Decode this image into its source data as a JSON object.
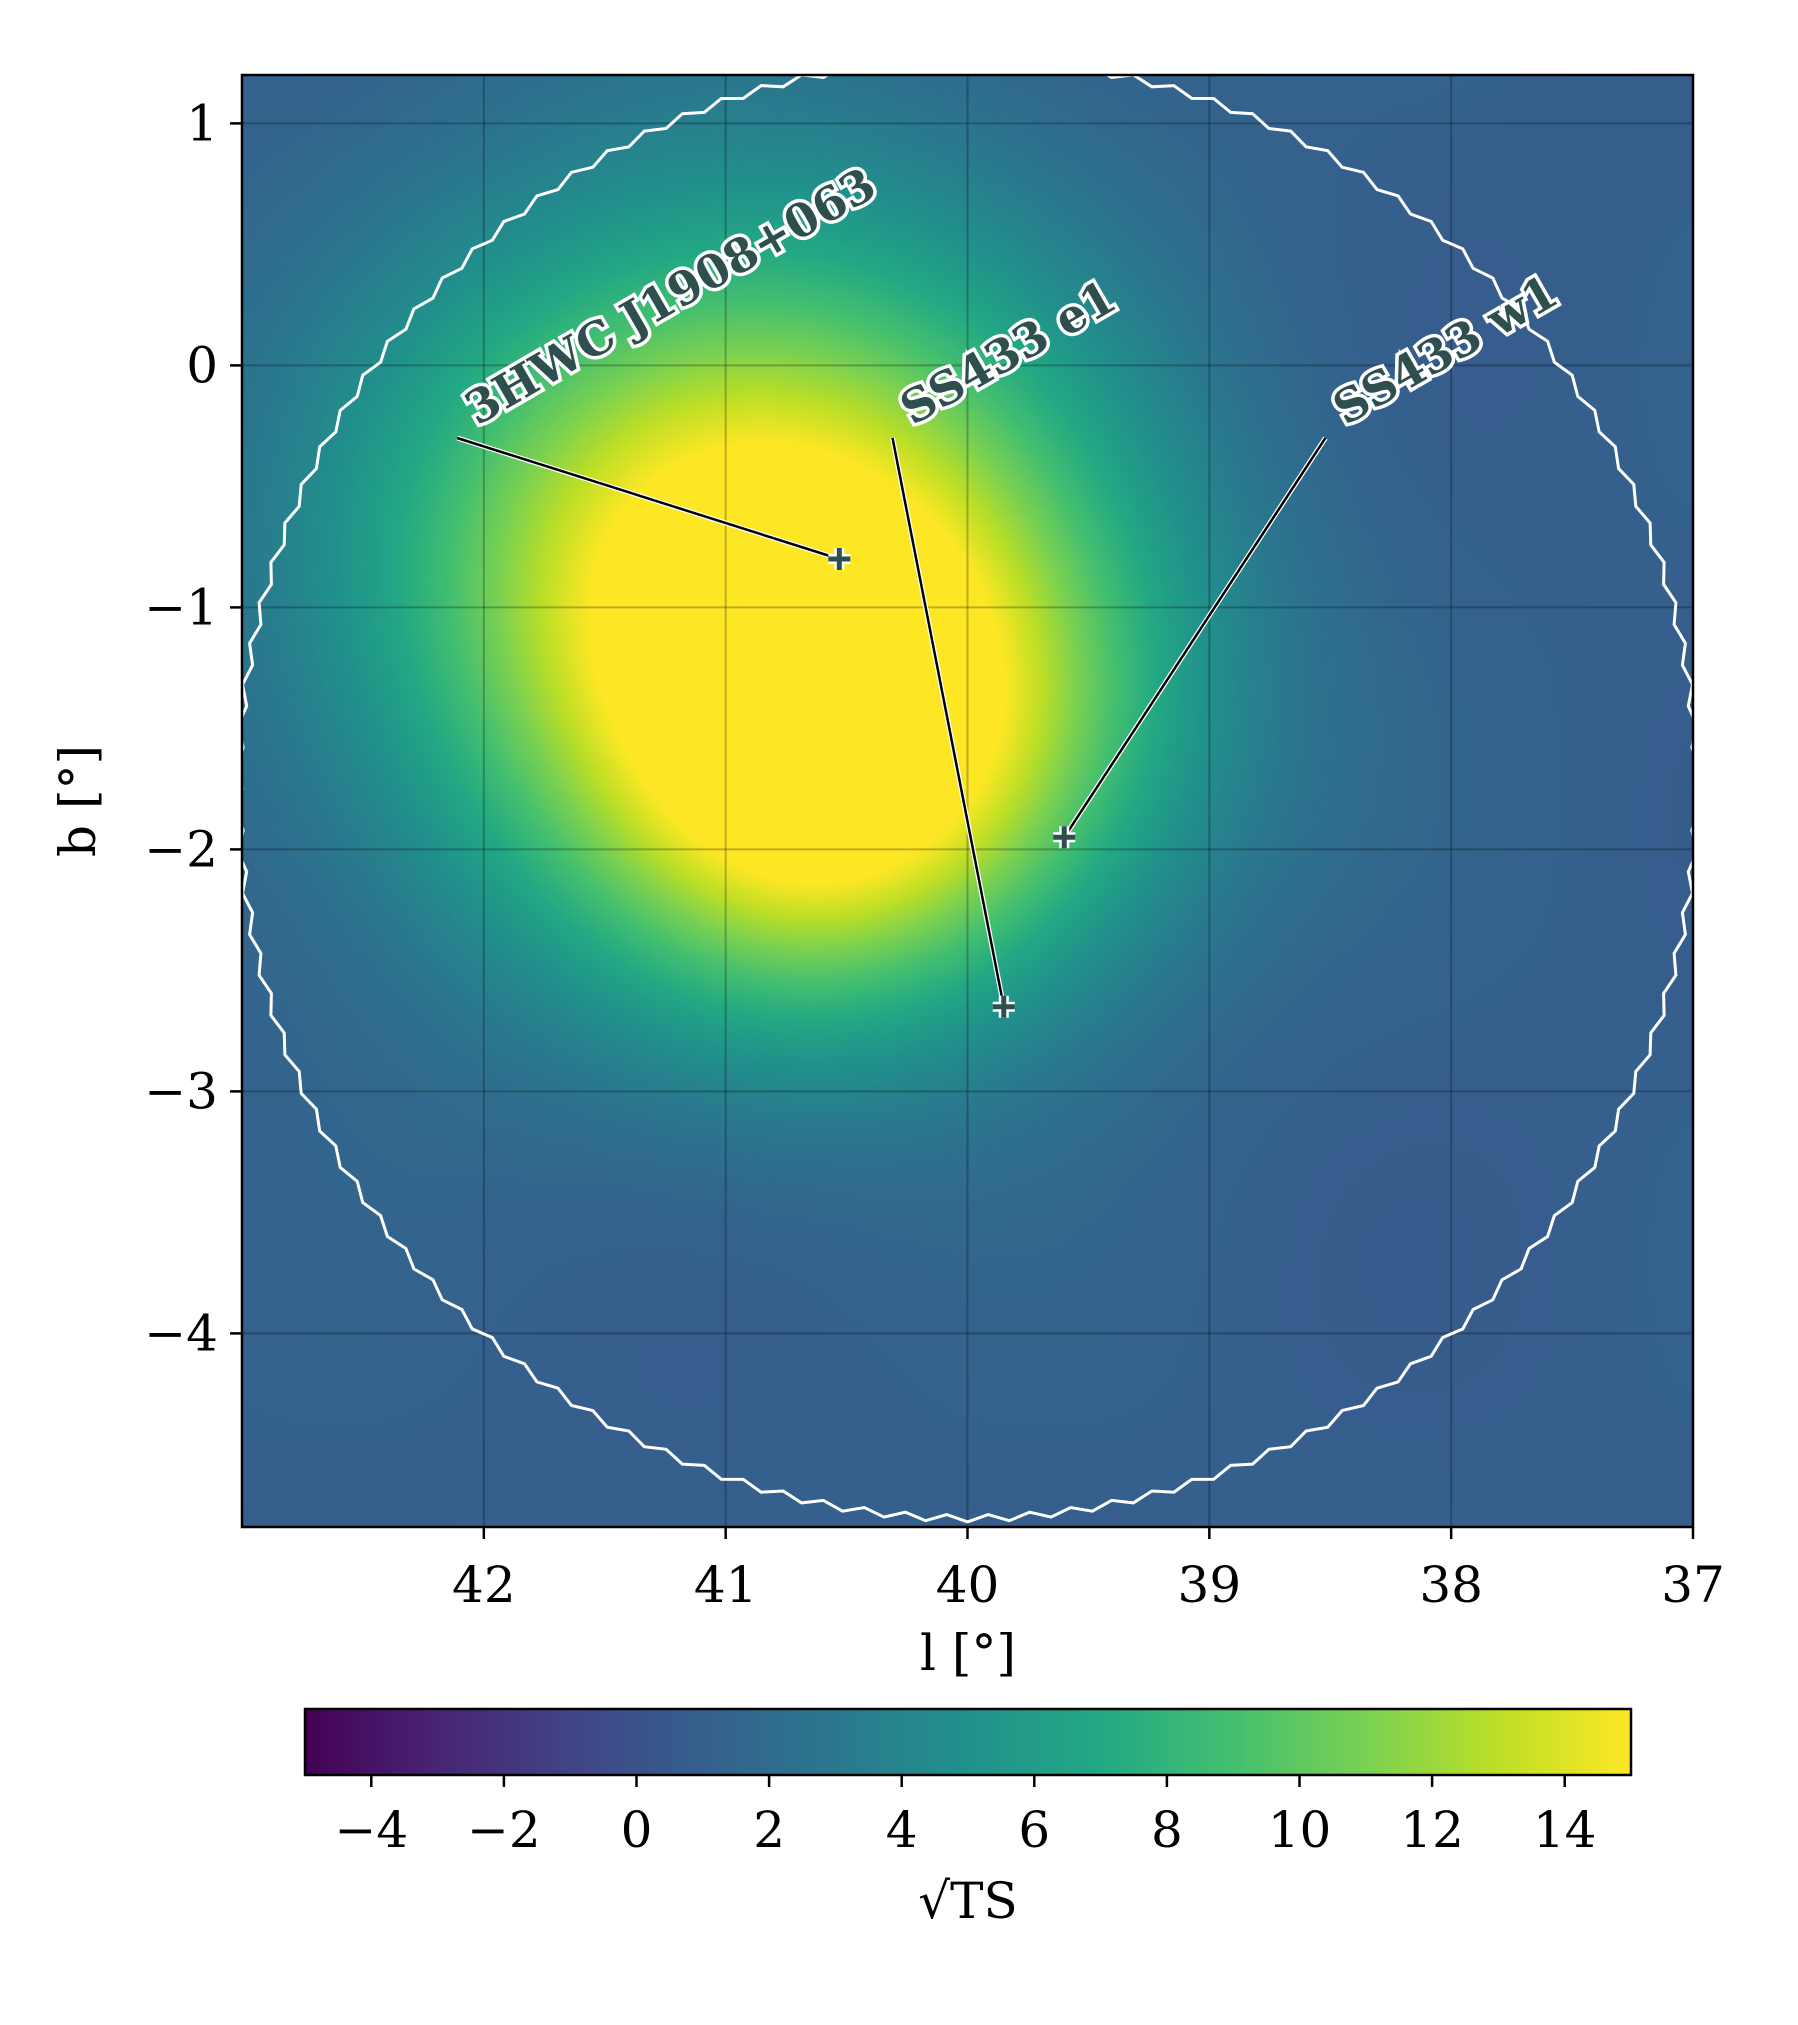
{
  "chart_data": {
    "type": "heatmap",
    "xlabel": "l [°]",
    "ylabel": "b [°]",
    "xlim": [
      43.0,
      37.0
    ],
    "ylim": [
      -4.8,
      1.2
    ],
    "xticks": [
      42,
      41,
      40,
      39,
      38,
      37
    ],
    "xtick_labels": [
      "42",
      "41",
      "40",
      "39",
      "38",
      "37"
    ],
    "yticks": [
      1,
      0,
      -1,
      -2,
      -3,
      -4
    ],
    "ytick_labels": [
      "1",
      "0",
      "−1",
      "−2",
      "−3",
      "−4"
    ],
    "grid": true,
    "colormap": "viridis",
    "colorbar": {
      "label": "√TS",
      "range": [
        -5,
        15
      ],
      "ticks": [
        -4,
        -2,
        0,
        2,
        4,
        6,
        8,
        10,
        12,
        14
      ],
      "tick_labels": [
        "−4",
        "−2",
        "0",
        "2",
        "4",
        "6",
        "8",
        "10",
        "12",
        "14"
      ],
      "placement": "bottom"
    },
    "emission": {
      "peak_value": 15,
      "background_value": 1,
      "components": [
        {
          "l": 40.95,
          "b": -0.9,
          "amplitude": 16,
          "sigma_deg": 1.0
        },
        {
          "l": 40.05,
          "b": -1.55,
          "amplitude": 6,
          "sigma_deg": 0.7
        },
        {
          "l": 40.7,
          "b": -2.0,
          "amplitude": 4,
          "sigma_deg": 0.6
        }
      ]
    },
    "roi_outline": {
      "color": "#ffffff",
      "center_l": 40.0,
      "center_b": -1.75,
      "radius_deg": 3.0
    },
    "sources": [
      {
        "name": "3HWC J1908+063",
        "l": 40.53,
        "b": -0.8,
        "label_l": 42.11,
        "label_b": -0.3
      },
      {
        "name": "SS433 e1",
        "l": 39.85,
        "b": -2.65,
        "label_l": 40.31,
        "label_b": -0.3
      },
      {
        "name": "SS433 w1",
        "l": 39.6,
        "b": -1.95,
        "label_l": 38.52,
        "label_b": -0.3
      }
    ],
    "source_marker": "plus",
    "label_color": "#2f4f4f"
  }
}
